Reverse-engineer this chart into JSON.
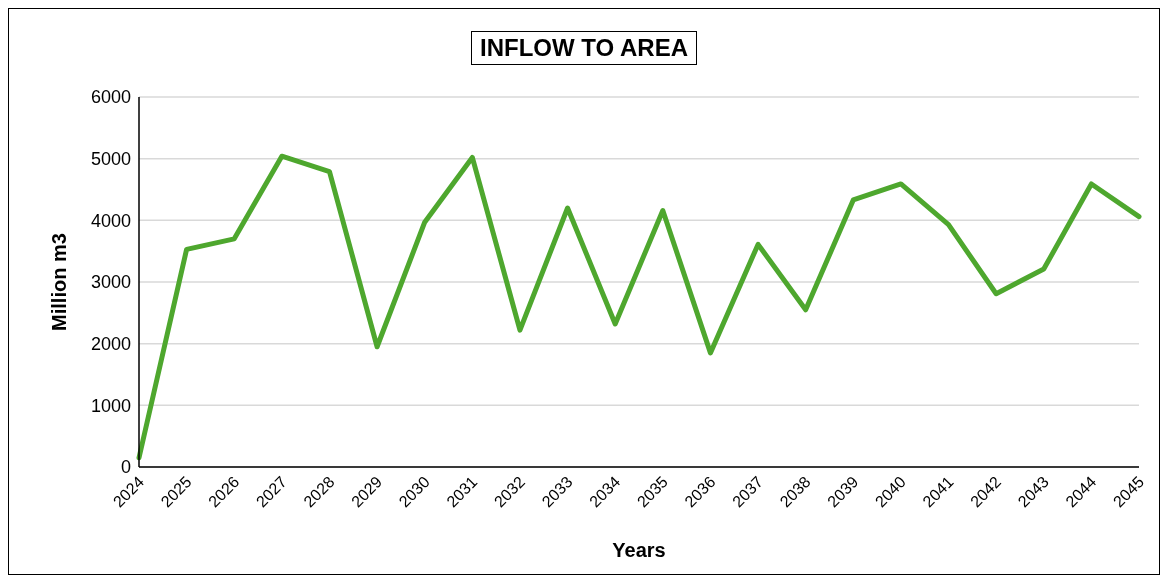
{
  "chart_data": {
    "type": "line",
    "title": "INFLOW TO AREA",
    "xlabel": "Years",
    "ylabel": "Million m3",
    "categories": [
      "2024",
      "2025",
      "2026",
      "2027",
      "2028",
      "2029",
      "2030",
      "2031",
      "2032",
      "2033",
      "2034",
      "2035",
      "2036",
      "2037",
      "2038",
      "2039",
      "2040",
      "2041",
      "2042",
      "2043",
      "2044",
      "2045"
    ],
    "series": [
      {
        "color": "#4ea72e",
        "values": [
          150,
          3530,
          3700,
          5040,
          4790,
          1950,
          3970,
          5020,
          2220,
          4200,
          2320,
          4160,
          1850,
          3610,
          2550,
          4330,
          4590,
          3930,
          2810,
          3210,
          4590,
          4060
        ]
      }
    ],
    "ylim": [
      0,
      6000
    ],
    "yticks": [
      0,
      1000,
      2000,
      3000,
      4000,
      5000,
      6000
    ],
    "grid": "y",
    "marker": "none",
    "line_style": "solid",
    "legend": false
  }
}
